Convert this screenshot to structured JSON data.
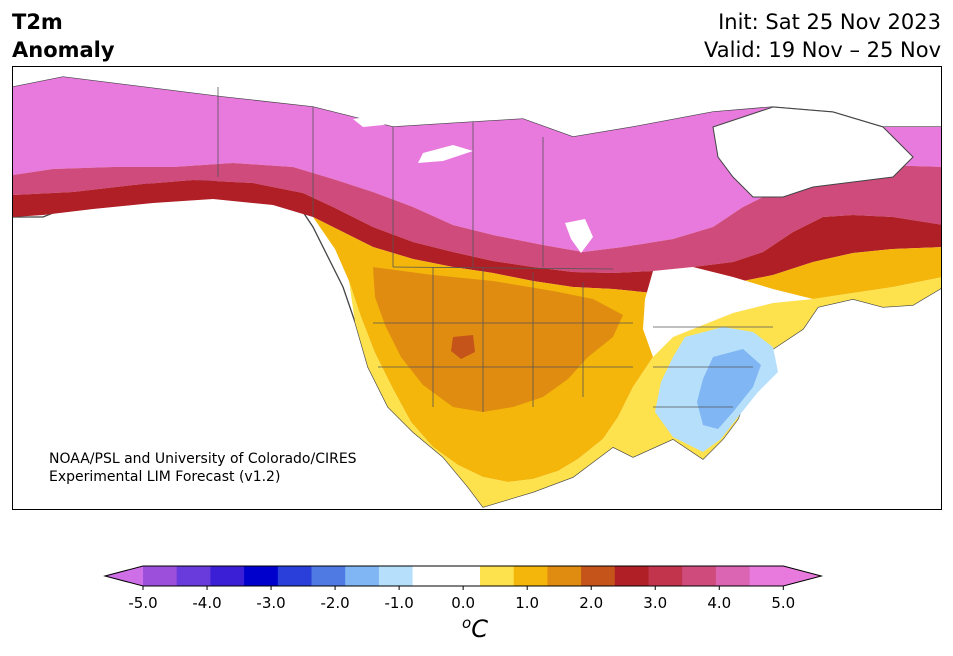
{
  "title": {
    "variable_line1": "T2m",
    "variable_line2": "Anomaly",
    "init": "Init: Sat 25 Nov 2023",
    "valid": "Valid: 19 Nov – 25 Nov"
  },
  "credit": {
    "line1": "NOAA/PSL and University of Colorado/CIRES",
    "line2": "Experimental LIM Forecast (v1.2)"
  },
  "colorbar": {
    "unit_base": "C",
    "unit_sup": "o",
    "tick_labels": [
      "-5.0",
      "-4.0",
      "-3.0",
      "-2.0",
      "-1.0",
      "0.0",
      "1.0",
      "2.0",
      "3.0",
      "4.0",
      "5.0"
    ],
    "colors": [
      "#cf6fe8",
      "#9b4fdb",
      "#6a3bdc",
      "#3a1fd6",
      "#0000cc",
      "#2a3fd9",
      "#4f7ae3",
      "#7fb6f3",
      "#b6dffb",
      "#ffffff",
      "#ffffff",
      "#fde24d",
      "#f4b60a",
      "#e08c10",
      "#c4541a",
      "#b01e26",
      "#c2334c",
      "#cf4b7b",
      "#dc65b3",
      "#e879dd",
      "#e879dd"
    ]
  }
}
